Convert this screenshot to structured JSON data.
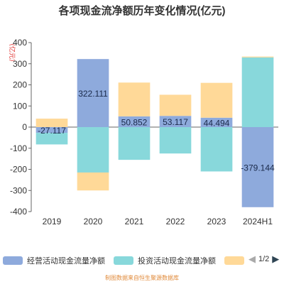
{
  "chart_data": {
    "type": "bar",
    "stacked": true,
    "title": "各项现金流净额历年变化情况(亿元)",
    "ylabel": "(亿元)",
    "ylim": [
      -400,
      400
    ],
    "yticks": [
      400,
      300,
      200,
      100,
      0,
      -100,
      -200,
      -300,
      -400
    ],
    "categories": [
      "2019",
      "2020",
      "2021",
      "2022",
      "2023",
      "2024H1"
    ],
    "series": [
      {
        "name": "经营活动现金流量净额",
        "color": "#8eaadc",
        "values": [
          -27.117,
          322.111,
          50.852,
          53.117,
          44.494,
          -379.144
        ]
      },
      {
        "name": "投资活动现金流量净额",
        "color": "#88d8db",
        "values": [
          -55,
          -215,
          -155,
          -125,
          -210,
          330
        ]
      },
      {
        "name": "",
        "color": "#ffd998",
        "values": [
          40,
          -85,
          160,
          100,
          165,
          4
        ]
      }
    ],
    "data_labels": [
      {
        "series": 0,
        "category": 0,
        "text": "-27.117"
      },
      {
        "series": 0,
        "category": 1,
        "text": "322.111"
      },
      {
        "series": 0,
        "category": 2,
        "text": "50.852"
      },
      {
        "series": 0,
        "category": 3,
        "text": "53.117"
      },
      {
        "series": 0,
        "category": 4,
        "text": "44.494"
      },
      {
        "series": 0,
        "category": 5,
        "text": "-379.144"
      }
    ],
    "legend_position": "bottom",
    "grid": false
  },
  "legend": {
    "page_indicator": "1/2",
    "prev_icon": "triangle-left",
    "next_icon": "triangle-right"
  },
  "source_note": "制图数据来自恒生聚源数据库"
}
